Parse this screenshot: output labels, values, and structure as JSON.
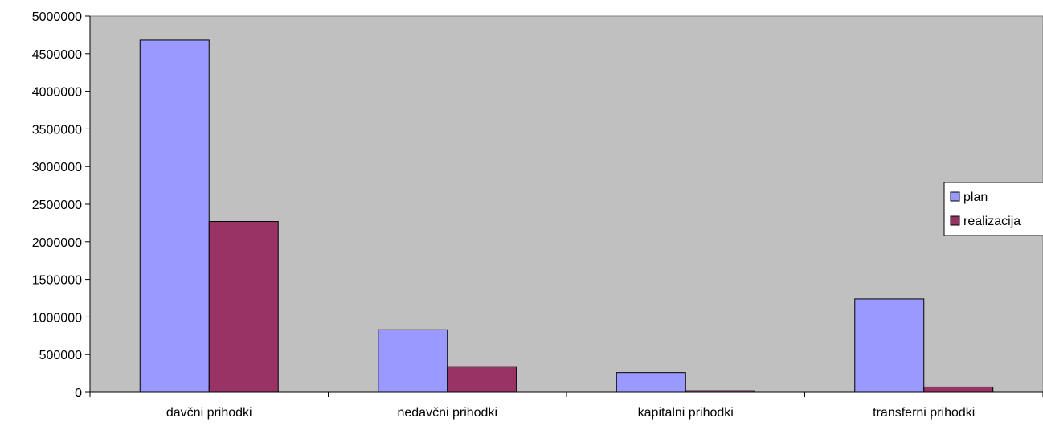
{
  "colors": {
    "plot_background": "#c0c0c0",
    "plan": "#9999ff",
    "realizacija": "#993366",
    "axis": "#000000"
  },
  "chart_data": {
    "type": "bar",
    "title": "",
    "xlabel": "",
    "ylabel": "",
    "categories": [
      "davčni prihodki",
      "nedavčni prihodki",
      "kapitalni prihodki",
      "transferni prihodki"
    ],
    "series": [
      {
        "name": "plan",
        "values": [
          4680000,
          830000,
          260000,
          1240000
        ]
      },
      {
        "name": "realizacija",
        "values": [
          2270000,
          340000,
          20000,
          70000
        ]
      }
    ],
    "ylim": [
      0,
      5000000
    ],
    "yticks": [
      0,
      500000,
      1000000,
      1500000,
      2000000,
      2500000,
      3000000,
      3500000,
      4000000,
      4500000,
      5000000
    ],
    "ytick_labels": [
      "0",
      "500000",
      "1000000",
      "1500000",
      "2000000",
      "2500000",
      "3000000",
      "3500000",
      "4000000",
      "4500000",
      "5000000"
    ],
    "grid": false,
    "legend_position": "right"
  }
}
